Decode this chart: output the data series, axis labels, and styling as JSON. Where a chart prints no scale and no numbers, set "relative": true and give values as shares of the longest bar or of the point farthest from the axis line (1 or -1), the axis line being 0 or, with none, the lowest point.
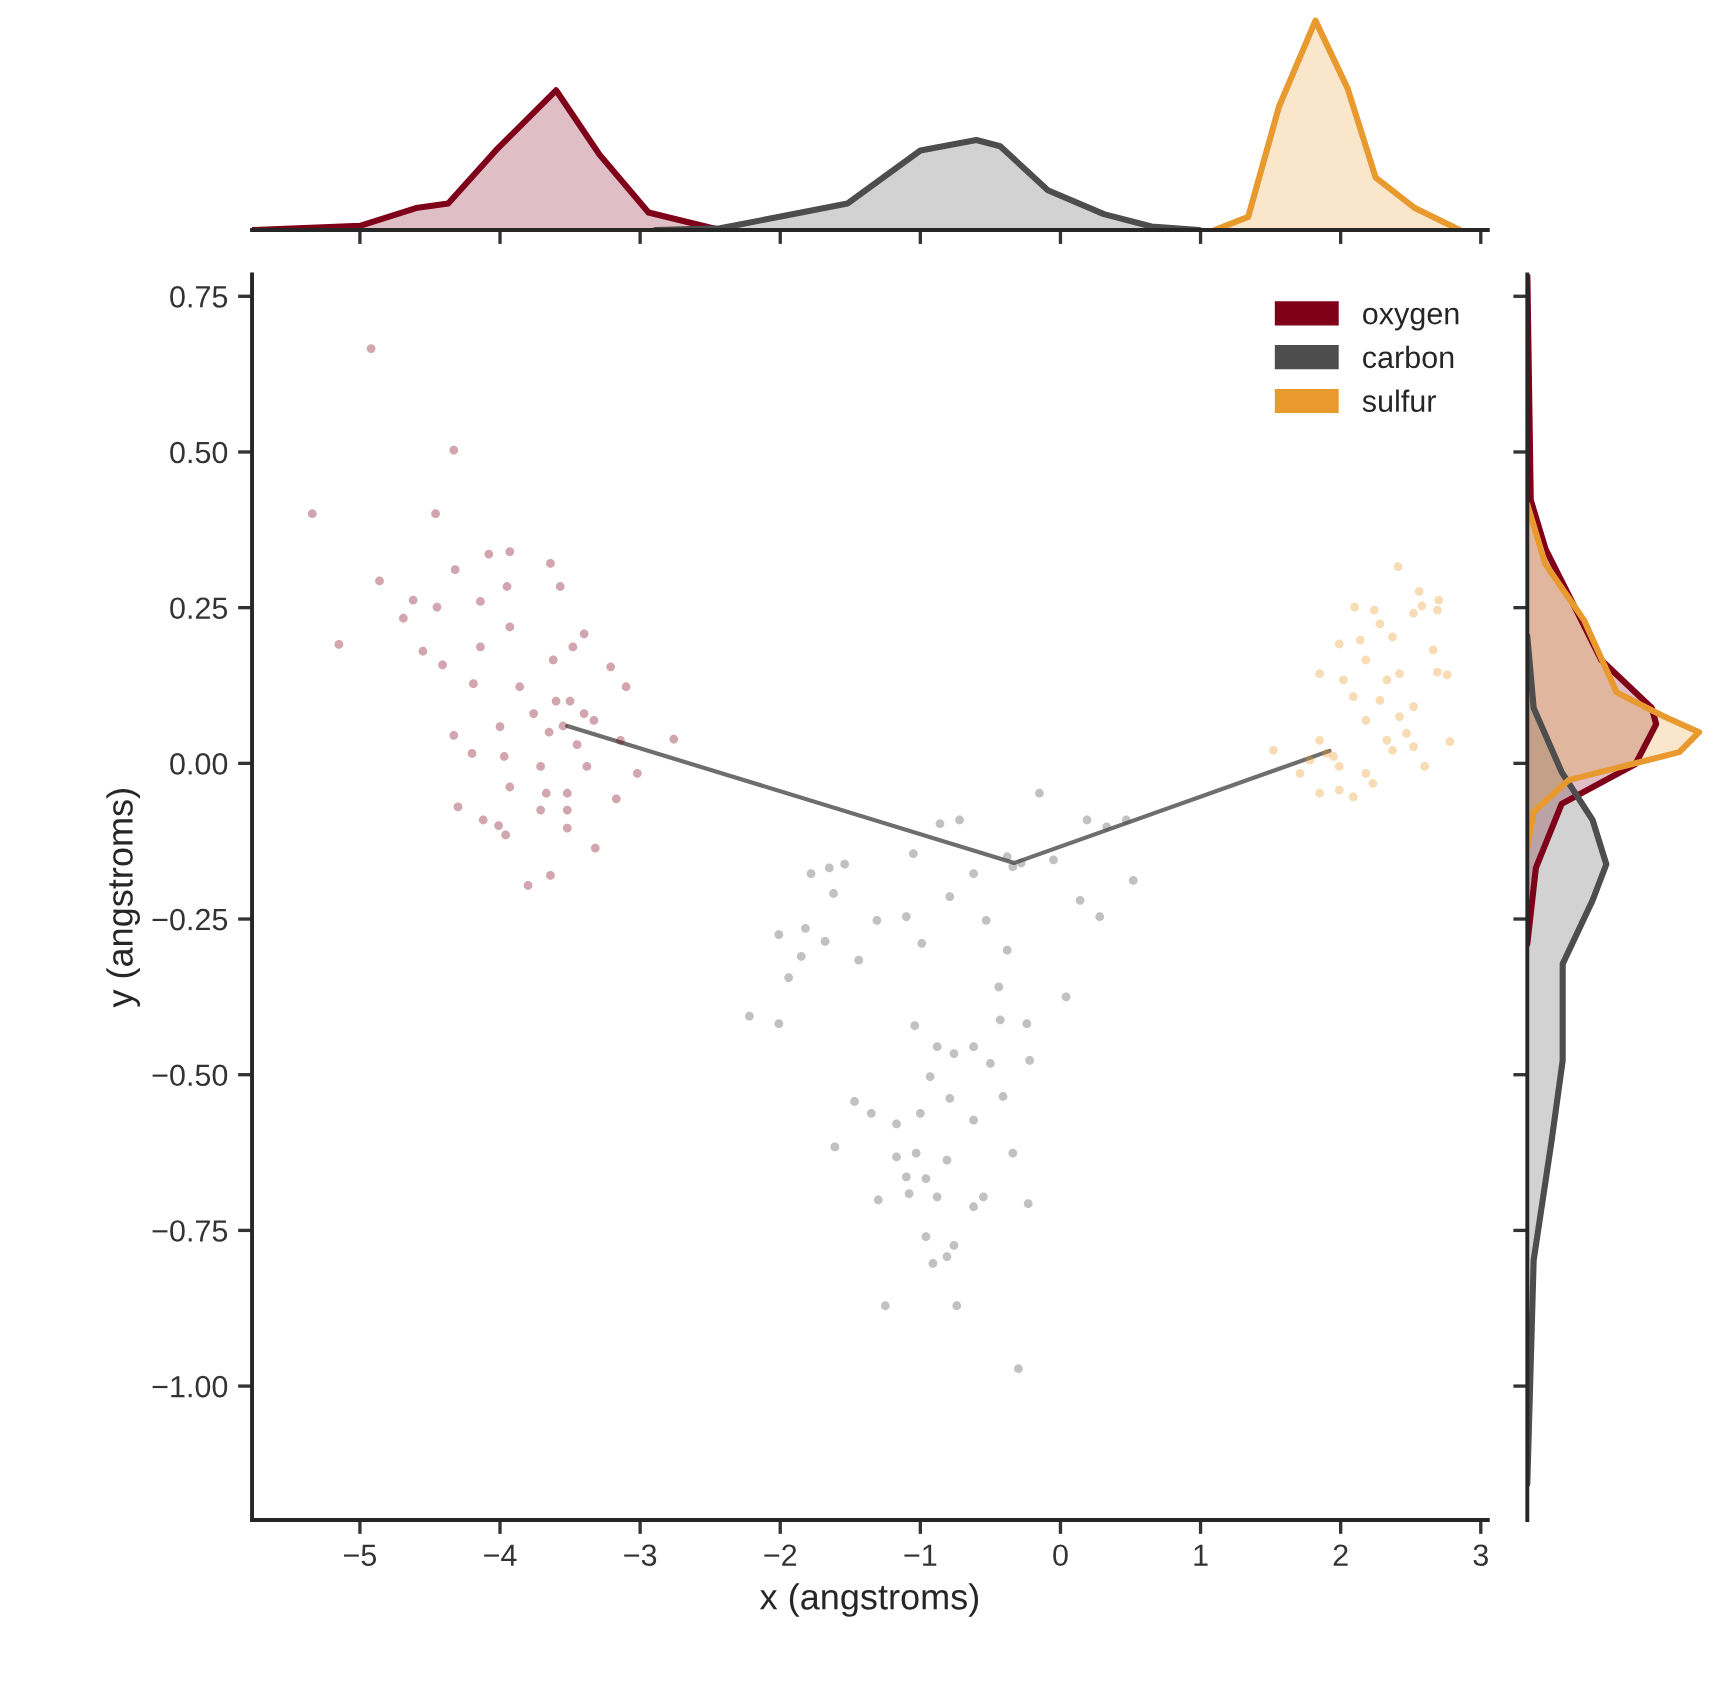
{
  "chart_data": [
    {
      "type": "scatter",
      "xlabel": "x (angstroms)",
      "ylabel": "y (angstroms)",
      "xlim": [
        -5.77,
        3.05
      ],
      "ylim": [
        -1.215,
        0.785
      ],
      "xticks": [
        {
          "value": -5,
          "label": "−5"
        },
        {
          "value": -4,
          "label": "−4"
        },
        {
          "value": -3,
          "label": "−3"
        },
        {
          "value": -2,
          "label": "−2"
        },
        {
          "value": -1,
          "label": "−1"
        },
        0,
        1,
        2,
        3
      ],
      "yticks": [
        {
          "value": 0.75,
          "label": "0.75"
        },
        {
          "value": 0.5,
          "label": "0.50"
        },
        {
          "value": 0.25,
          "label": "0.25"
        },
        {
          "value": 0,
          "label": "0.00"
        },
        {
          "value": -0.25,
          "label": "−0.25"
        },
        {
          "value": -0.5,
          "label": "−0.50"
        },
        {
          "value": -0.75,
          "label": "−0.75"
        },
        {
          "value": -1,
          "label": "−1.00"
        }
      ],
      "grid": false,
      "legend": "top right",
      "marker": "circle",
      "series": [
        {
          "name": "oxygen",
          "color": "#7f0019",
          "x": [
            -4.92,
            -4.33,
            -5.34,
            -4.46,
            -4.86,
            -5.15,
            -4.62,
            -4.45,
            -4.69,
            -4.55,
            -4.41,
            -4.32,
            -4.08,
            -3.93,
            -3.64,
            -3.95,
            -3.57,
            -4.14,
            -3.93,
            -3.4,
            -3.21,
            -4.14,
            -4.19,
            -3.86,
            -3.62,
            -3.48,
            -3.1,
            -2.76,
            -4.33,
            -4.0,
            -3.76,
            -3.33,
            -3.14,
            -4.2,
            -3.97,
            -3.71,
            -3.38,
            -3.02,
            -3.93,
            -3.67,
            -3.52,
            -3.17,
            -4.3,
            -3.71,
            -3.52,
            -4.12,
            -4.01,
            -3.96,
            -3.52,
            -3.32,
            -3.64,
            -3.8,
            -3.55,
            -3.6,
            -3.45,
            -3.5,
            -3.65,
            -3.4
          ],
          "values": [
            0.666,
            0.503,
            0.401,
            0.401,
            0.293,
            0.191,
            0.262,
            0.251,
            0.233,
            0.18,
            0.158,
            0.311,
            0.336,
            0.34,
            0.321,
            0.284,
            0.284,
            0.26,
            0.219,
            0.208,
            0.155,
            0.187,
            0.128,
            0.123,
            0.166,
            0.187,
            0.123,
            0.039,
            0.045,
            0.059,
            0.08,
            0.069,
            0.037,
            0.016,
            0.011,
            -0.005,
            -0.005,
            -0.016,
            -0.038,
            -0.048,
            -0.048,
            -0.057,
            -0.07,
            -0.075,
            -0.075,
            -0.091,
            -0.1,
            -0.115,
            -0.104,
            -0.136,
            -0.18,
            -0.196,
            0.06,
            0.1,
            0.03,
            0.1,
            0.05,
            0.08
          ]
        },
        {
          "name": "carbon",
          "color": "#4d4d4d",
          "x": [
            -1.78,
            -1.65,
            -1.54,
            -1.62,
            -2.01,
            -1.82,
            -1.85,
            -1.94,
            -1.68,
            -1.44,
            -2.22,
            -2.01,
            -1.31,
            -1.1,
            -0.99,
            -1.05,
            -0.86,
            -0.72,
            -0.15,
            0.19,
            0.33,
            0.47,
            0.52,
            0.28,
            0.14,
            -0.05,
            -0.34,
            -0.38,
            -0.28,
            -0.62,
            -0.79,
            -0.53,
            -0.38,
            0.04,
            -0.44,
            -0.43,
            -1.04,
            -0.24,
            -0.88,
            -0.76,
            -0.62,
            -0.5,
            -0.22,
            -1.47,
            -1.35,
            -0.93,
            -1.0,
            -0.79,
            -0.62,
            -0.41,
            -1.17,
            -1.61,
            -1.03,
            -1.17,
            -0.81,
            -0.34,
            -1.1,
            -0.96,
            -0.88,
            -1.08,
            -0.62,
            -0.55,
            -0.23,
            -1.3,
            -0.76,
            -0.81,
            -0.96,
            -0.91,
            -1.25,
            -0.74,
            -0.3
          ],
          "values": [
            -0.177,
            -0.168,
            -0.162,
            -0.209,
            -0.275,
            -0.265,
            -0.31,
            -0.344,
            -0.286,
            -0.316,
            -0.406,
            -0.418,
            -0.252,
            -0.246,
            -0.289,
            -0.145,
            -0.097,
            -0.091,
            -0.048,
            -0.091,
            -0.102,
            -0.091,
            -0.188,
            -0.246,
            -0.22,
            -0.155,
            -0.166,
            -0.15,
            -0.16,
            -0.177,
            -0.214,
            -0.252,
            -0.3,
            -0.375,
            -0.359,
            -0.412,
            -0.421,
            -0.418,
            -0.455,
            -0.466,
            -0.455,
            -0.482,
            -0.477,
            -0.543,
            -0.562,
            -0.503,
            -0.562,
            -0.538,
            -0.573,
            -0.535,
            -0.579,
            -0.616,
            -0.626,
            -0.632,
            -0.637,
            -0.626,
            -0.664,
            -0.667,
            -0.696,
            -0.691,
            -0.712,
            -0.696,
            -0.707,
            -0.701,
            -0.774,
            -0.792,
            -0.76,
            -0.803,
            -0.871,
            -0.871,
            -0.972
          ]
        },
        {
          "name": "sulfur",
          "color": "#e89a2e",
          "x": [
            2.41,
            2.56,
            2.7,
            2.52,
            2.69,
            2.58,
            2.66,
            2.69,
            2.76,
            2.78,
            2.6,
            2.24,
            2.1,
            2.28,
            2.14,
            1.99,
            2.37,
            2.42,
            2.33,
            2.18,
            2.02,
            1.85,
            2.09,
            2.28,
            2.52,
            2.42,
            2.18,
            2.47,
            2.33,
            2.37,
            2.52,
            1.52,
            1.85,
            1.9,
            1.95,
            1.78,
            1.99,
            1.71,
            2.18,
            2.23,
            1.99,
            2.09,
            1.85
          ],
          "values": [
            0.316,
            0.276,
            0.262,
            0.241,
            0.246,
            0.253,
            0.182,
            0.146,
            0.142,
            0.035,
            -0.005,
            0.246,
            0.251,
            0.224,
            0.198,
            0.192,
            0.203,
            0.144,
            0.134,
            0.166,
            0.134,
            0.144,
            0.107,
            0.101,
            0.091,
            0.075,
            0.069,
            0.048,
            0.037,
            0.021,
            0.027,
            0.021,
            0.037,
            0.016,
            0.011,
            0.005,
            -0.005,
            -0.016,
            -0.016,
            -0.032,
            -0.043,
            -0.054,
            -0.048
          ]
        },
        {
          "type": "line",
          "color": "#6e6e6e",
          "marker": "none",
          "x": [
            -3.52,
            -0.33,
            1.92
          ],
          "values": [
            0.06,
            -0.16,
            0.02
          ]
        }
      ]
    },
    {
      "type": "area",
      "relative": true,
      "xlim": [
        -5.77,
        3.05
      ],
      "xticks": [
        {
          "value": -5,
          "label": null
        },
        {
          "value": -4,
          "label": null
        },
        {
          "value": -3,
          "label": null
        },
        {
          "value": -2,
          "label": null
        },
        {
          "value": -1,
          "label": null
        },
        {
          "value": 0,
          "label": null
        },
        {
          "value": 1,
          "label": null
        },
        {
          "value": 2,
          "label": null
        },
        {
          "value": 3,
          "label": null
        }
      ],
      "tick_labels": false,
      "grid": false,
      "series": [
        {
          "color": "#7f0019",
          "x": [
            -5.77,
            -5.0,
            -4.6,
            -4.37,
            -4.03,
            -3.6,
            -3.29,
            -2.94,
            -2.43
          ],
          "values": [
            0,
            0.02,
            0.105,
            0.127,
            0.38,
            0.667,
            0.36,
            0.084,
            0
          ]
        },
        {
          "color": "#4d4d4d",
          "x": [
            -2.89,
            -2.43,
            -1.52,
            -1.0,
            -0.6,
            -0.43,
            -0.09,
            0.31,
            0.65,
            0.99
          ],
          "values": [
            0,
            0.008,
            0.127,
            0.38,
            0.43,
            0.4,
            0.19,
            0.076,
            0.017,
            0
          ]
        },
        {
          "color": "#e89a2e",
          "x": [
            1.1,
            1.34,
            1.56,
            1.82,
            2.05,
            2.25,
            2.53,
            2.85
          ],
          "values": [
            0,
            0.063,
            0.59,
            1,
            0.675,
            0.25,
            0.105,
            0
          ]
        }
      ]
    },
    {
      "type": "area",
      "relative": true,
      "orientation": "horizontal",
      "ylim": [
        -1.215,
        0.785
      ],
      "yticks": [
        {
          "value": 0.75,
          "label": null
        },
        {
          "value": 0.5,
          "label": null
        },
        {
          "value": 0.25,
          "label": null
        },
        {
          "value": 0,
          "label": null
        },
        {
          "value": -0.25,
          "label": null
        },
        {
          "value": -0.5,
          "label": null
        },
        {
          "value": -0.75,
          "label": null
        },
        {
          "value": -1,
          "label": null
        }
      ],
      "tick_labels": false,
      "grid": false,
      "series": [
        {
          "color": "#7f0019",
          "x": [
            0.789,
            0.423,
            0.345,
            0.166,
            0.089,
            0.063,
            -0.001,
            -0.065,
            -0.168,
            -0.29
          ],
          "values": [
            0,
            0.02,
            0.105,
            0.43,
            0.725,
            0.75,
            0.63,
            0.2,
            0.05,
            0
          ]
        },
        {
          "color": "#4d4d4d",
          "x": [
            0.204,
            0.089,
            -0.014,
            -0.091,
            -0.162,
            -0.22,
            -0.322,
            -0.477,
            -0.605,
            -0.798,
            -1.157
          ],
          "values": [
            0,
            0.037,
            0.2,
            0.38,
            0.46,
            0.38,
            0.206,
            0.206,
            0.142,
            0.037,
            0
          ]
        },
        {
          "color": "#e89a2e",
          "x": [
            0.416,
            0.32,
            0.23,
            0.114,
            0.076,
            0.05,
            0.018,
            -0.027,
            -0.078,
            -0.136
          ],
          "values": [
            0,
            0.105,
            0.33,
            0.52,
            0.79,
            1,
            0.885,
            0.24,
            0.037,
            0
          ]
        }
      ]
    }
  ]
}
